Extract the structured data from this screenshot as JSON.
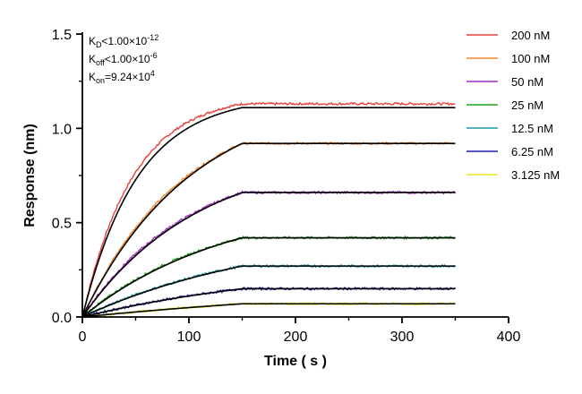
{
  "chart_data": {
    "type": "line",
    "title": "",
    "xlabel": "Time ( s )",
    "ylabel": "Response (nm)",
    "xlim": [
      0,
      400
    ],
    "ylim": [
      0,
      1.5
    ],
    "x_ticks": [
      "0",
      "100",
      "200",
      "300",
      "400"
    ],
    "y_ticks": [
      "0.0",
      "0.5",
      "1.0",
      "1.5"
    ],
    "grid": false,
    "legend_position": "right",
    "association_end": 150,
    "x_end": 350,
    "series": [
      {
        "name": "200 nM",
        "color": "#e8413c",
        "plateau": 1.13,
        "rate": 0.021
      },
      {
        "name": "100 nM",
        "color": "#f0892f",
        "plateau": 0.92,
        "rate": 0.0105
      },
      {
        "name": "50 nM",
        "color": "#a22fc3",
        "plateau": 0.66,
        "rate": 0.01
      },
      {
        "name": "25 nM",
        "color": "#1ca51c",
        "plateau": 0.42,
        "rate": 0.008
      },
      {
        "name": "12.5 nM",
        "color": "#1a9ca3",
        "plateau": 0.27,
        "rate": 0.006
      },
      {
        "name": "6.25 nM",
        "color": "#1f1fb0",
        "plateau": 0.15,
        "rate": 0.005
      },
      {
        "name": "3.125 nM",
        "color": "#e8e81a",
        "plateau": 0.07,
        "rate": 0.003
      }
    ],
    "fit_color": "#000000",
    "fit_plateaus": [
      1.11,
      0.92,
      0.66,
      0.42,
      0.27,
      0.15,
      0.07
    ],
    "annotations": [
      {
        "pre": "K",
        "sub": "D",
        "post": "<1.00×10",
        "sup": "-12"
      },
      {
        "pre": "K",
        "sub": "off",
        "post": "<1.00×10",
        "sup": "-6"
      },
      {
        "pre": "K",
        "sub": "on",
        "post": "=9.24×10",
        "sup": "4"
      }
    ]
  }
}
